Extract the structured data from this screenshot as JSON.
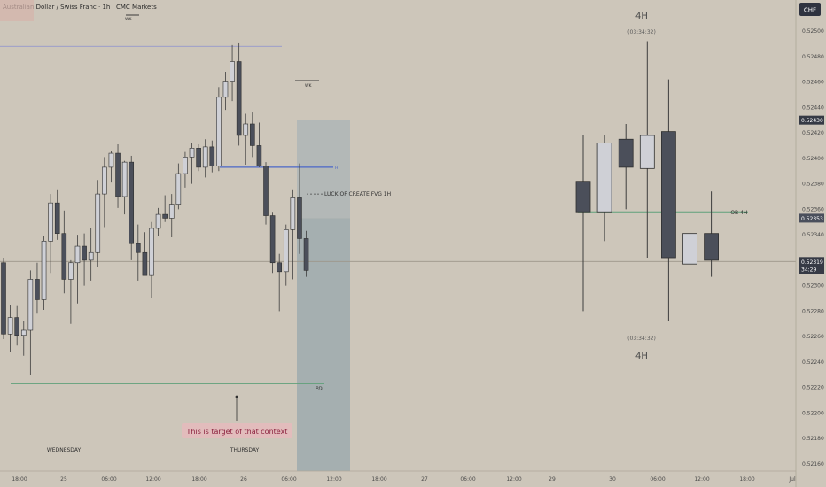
{
  "header": {
    "symbol_title": "Australian Dollar / Swiss Franc · 1h · CMC Markets",
    "currency_badge": "CHF",
    "wk_label": "WK"
  },
  "annotations": {
    "fvg_label": "LUCK OF CREATE FVG 1H",
    "ob_label": "-OB 4H",
    "wk_label_2": "WK",
    "pdl_label": "PDL",
    "target_note": "This is target of that context",
    "wednesday_label": "WEDNESDAY",
    "thursday_label": "THURSDAY",
    "timeframe_top": "4H",
    "timeframe_bottom": "4H",
    "countdown_top": "(03:34:32)",
    "countdown_bottom": "(03:34:32)",
    "line_marker": "H"
  },
  "price_badges": {
    "upper": {
      "price": "0.52430",
      "color": "#363a45"
    },
    "middle": {
      "price": "0.52353",
      "color": "#4a4f5c"
    },
    "current": {
      "price": "0.52319",
      "countdown": "34:29",
      "color": "#363a45"
    }
  },
  "colors": {
    "background": "#cdc6ba",
    "bear_body": "#4b4f5a",
    "bull_body": "#cfd0d6",
    "wick": "#3d3d3d",
    "blue_line": "#4a66c8",
    "green_line": "#5fa07a",
    "zone_fill": "#aab3b5",
    "zone_fill_dark": "#97a7ac",
    "note_bg": "#e2bcbc",
    "note_text": "#8a1f3c",
    "current_price_line": "#9d9689"
  },
  "chart_data": {
    "type": "candlestick",
    "timeframe_left": "1h",
    "timeframe_right": "4H",
    "ylim": [
      0.5215,
      0.525
    ],
    "y_ticks": [
      0.5216,
      0.5218,
      0.522,
      0.5222,
      0.5224,
      0.5226,
      0.5228,
      0.523,
      0.5232,
      0.5234,
      0.5236,
      0.5238,
      0.524,
      0.5242,
      0.5244,
      0.5246,
      0.5248,
      0.525
    ],
    "y_tick_labels": [
      "0.52160",
      "0.52180",
      "0.52200",
      "0.52220",
      "0.52240",
      "0.52260",
      "0.52280",
      "0.52300",
      "0.52320",
      "0.52340",
      "0.52360",
      "0.52380",
      "0.52400",
      "0.52420",
      "0.52440",
      "0.52460",
      "0.52480",
      "0.52500"
    ],
    "x_tick_labels": [
      "18:00",
      "25",
      "06:00",
      "12:00",
      "18:00",
      "26",
      "06:00",
      "12:00",
      "18:00",
      "27",
      "06:00",
      "12:00",
      "29",
      "30",
      "06:00",
      "12:00",
      "18:00",
      "Jul"
    ],
    "candles_1h": [
      {
        "o": 0.52318,
        "h": 0.52322,
        "l": 0.52258,
        "c": 0.52262
      },
      {
        "o": 0.52262,
        "h": 0.52285,
        "l": 0.52248,
        "c": 0.52275
      },
      {
        "o": 0.52275,
        "h": 0.52284,
        "l": 0.52253,
        "c": 0.52261
      },
      {
        "o": 0.52261,
        "h": 0.52272,
        "l": 0.52245,
        "c": 0.52265
      },
      {
        "o": 0.52265,
        "h": 0.52312,
        "l": 0.5223,
        "c": 0.52305
      },
      {
        "o": 0.52305,
        "h": 0.52318,
        "l": 0.52278,
        "c": 0.52289
      },
      {
        "o": 0.52289,
        "h": 0.52339,
        "l": 0.52281,
        "c": 0.52335
      },
      {
        "o": 0.52335,
        "h": 0.52372,
        "l": 0.5231,
        "c": 0.52365
      },
      {
        "o": 0.52365,
        "h": 0.52375,
        "l": 0.52336,
        "c": 0.52341
      },
      {
        "o": 0.52341,
        "h": 0.52359,
        "l": 0.52294,
        "c": 0.52305
      },
      {
        "o": 0.52305,
        "h": 0.5232,
        "l": 0.5227,
        "c": 0.52318
      },
      {
        "o": 0.52318,
        "h": 0.5234,
        "l": 0.52286,
        "c": 0.52331
      },
      {
        "o": 0.52331,
        "h": 0.52341,
        "l": 0.523,
        "c": 0.5232
      },
      {
        "o": 0.5232,
        "h": 0.52345,
        "l": 0.52304,
        "c": 0.52326
      },
      {
        "o": 0.52326,
        "h": 0.52383,
        "l": 0.52315,
        "c": 0.52372
      },
      {
        "o": 0.52372,
        "h": 0.52401,
        "l": 0.52346,
        "c": 0.52393
      },
      {
        "o": 0.52393,
        "h": 0.52406,
        "l": 0.52381,
        "c": 0.52404
      },
      {
        "o": 0.52404,
        "h": 0.52411,
        "l": 0.52361,
        "c": 0.5237
      },
      {
        "o": 0.5237,
        "h": 0.52398,
        "l": 0.52356,
        "c": 0.52397
      },
      {
        "o": 0.52397,
        "h": 0.52402,
        "l": 0.5232,
        "c": 0.52333
      },
      {
        "o": 0.52333,
        "h": 0.52348,
        "l": 0.52304,
        "c": 0.52326
      },
      {
        "o": 0.52326,
        "h": 0.52342,
        "l": 0.5231,
        "c": 0.52308
      },
      {
        "o": 0.52308,
        "h": 0.5235,
        "l": 0.5229,
        "c": 0.52345
      },
      {
        "o": 0.52345,
        "h": 0.52361,
        "l": 0.52339,
        "c": 0.52356
      },
      {
        "o": 0.52356,
        "h": 0.52371,
        "l": 0.5235,
        "c": 0.52353
      },
      {
        "o": 0.52353,
        "h": 0.52372,
        "l": 0.52338,
        "c": 0.52364
      },
      {
        "o": 0.52364,
        "h": 0.52396,
        "l": 0.5236,
        "c": 0.52388
      },
      {
        "o": 0.52388,
        "h": 0.52405,
        "l": 0.52377,
        "c": 0.52401
      },
      {
        "o": 0.52401,
        "h": 0.52412,
        "l": 0.5238,
        "c": 0.52408
      },
      {
        "o": 0.52408,
        "h": 0.52411,
        "l": 0.5239,
        "c": 0.52393
      },
      {
        "o": 0.52393,
        "h": 0.52415,
        "l": 0.52385,
        "c": 0.52409
      },
      {
        "o": 0.52409,
        "h": 0.52414,
        "l": 0.52389,
        "c": 0.52394
      },
      {
        "o": 0.52394,
        "h": 0.52456,
        "l": 0.5239,
        "c": 0.52448
      },
      {
        "o": 0.52448,
        "h": 0.52468,
        "l": 0.52438,
        "c": 0.5246
      },
      {
        "o": 0.5246,
        "h": 0.52489,
        "l": 0.52445,
        "c": 0.52476
      },
      {
        "o": 0.52476,
        "h": 0.52491,
        "l": 0.5241,
        "c": 0.52418
      },
      {
        "o": 0.52418,
        "h": 0.52435,
        "l": 0.52395,
        "c": 0.52427
      },
      {
        "o": 0.52427,
        "h": 0.52436,
        "l": 0.52401,
        "c": 0.5241
      },
      {
        "o": 0.5241,
        "h": 0.52428,
        "l": 0.52393,
        "c": 0.52394
      },
      {
        "o": 0.52394,
        "h": 0.52397,
        "l": 0.52348,
        "c": 0.52355
      },
      {
        "o": 0.52355,
        "h": 0.52358,
        "l": 0.5231,
        "c": 0.52318
      },
      {
        "o": 0.52318,
        "h": 0.52325,
        "l": 0.5228,
        "c": 0.52311
      },
      {
        "o": 0.52311,
        "h": 0.52348,
        "l": 0.523,
        "c": 0.52344
      },
      {
        "o": 0.52344,
        "h": 0.52375,
        "l": 0.52305,
        "c": 0.52369
      },
      {
        "o": 0.52369,
        "h": 0.52396,
        "l": 0.52325,
        "c": 0.52337
      },
      {
        "o": 0.52337,
        "h": 0.52343,
        "l": 0.52307,
        "c": 0.52312
      }
    ],
    "candles_4h": [
      {
        "o": 0.52382,
        "h": 0.52418,
        "l": 0.5228,
        "c": 0.52358
      },
      {
        "o": 0.52358,
        "h": 0.52418,
        "l": 0.52335,
        "c": 0.52412
      },
      {
        "o": 0.52415,
        "h": 0.52427,
        "l": 0.5236,
        "c": 0.52393
      },
      {
        "o": 0.52392,
        "h": 0.52492,
        "l": 0.52322,
        "c": 0.52418
      },
      {
        "o": 0.52421,
        "h": 0.52462,
        "l": 0.52272,
        "c": 0.52322
      },
      {
        "o": 0.52317,
        "h": 0.52391,
        "l": 0.5228,
        "c": 0.52341
      },
      {
        "o": 0.52341,
        "h": 0.52374,
        "l": 0.52307,
        "c": 0.5232
      }
    ],
    "levels": {
      "top_thin_line": 0.52488,
      "blue_line": 0.52393,
      "current_price": 0.52319,
      "pdl": 0.52223,
      "ob_4h": 0.52358
    },
    "zone": {
      "top": 0.5243,
      "mid": 0.52353,
      "bottom": 0.5215
    }
  }
}
